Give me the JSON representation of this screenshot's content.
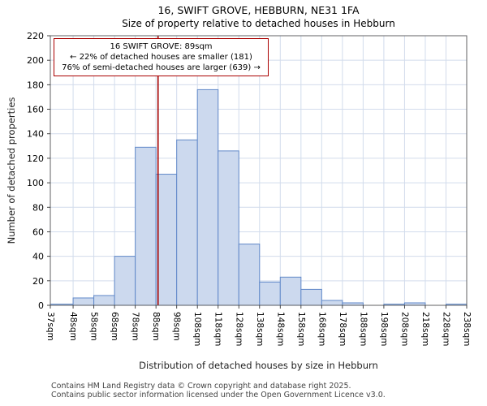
{
  "page": {
    "footer_line1": "Contains HM Land Registry data © Crown copyright and database right 2025.",
    "footer_line2": "Contains public sector information licensed under the Open Government Licence v3.0."
  },
  "annotation": {
    "line1": "16 SWIFT GROVE: 89sqm",
    "line2": "← 22% of detached houses are smaller (181)",
    "line3": "76% of semi-detached houses are larger (639) →"
  },
  "chart_data": {
    "type": "bar",
    "title": "16, SWIFT GROVE, HEBBURN, NE31 1FA",
    "subtitle": "Size of property relative to detached houses in Hebburn",
    "xlabel": "Distribution of detached houses by size in Hebburn",
    "ylabel": "Number of detached properties",
    "bin_unit": "sqm",
    "bin_edges": [
      37,
      48,
      58,
      68,
      78,
      88,
      98,
      108,
      118,
      128,
      138,
      148,
      158,
      168,
      178,
      188,
      198,
      208,
      218,
      228,
      238
    ],
    "values": [
      1,
      6,
      8,
      40,
      129,
      107,
      135,
      176,
      126,
      50,
      19,
      23,
      13,
      4,
      2,
      0,
      1,
      2,
      0,
      1
    ],
    "ylim": [
      0,
      220
    ],
    "ytick_step": 20,
    "grid": true,
    "marker_value": 89,
    "colors": {
      "bar_fill": "#ccd9ee",
      "bar_edge": "#6189c9",
      "grid": "#d2dcec",
      "marker": "#a40000",
      "spine": "#555555"
    }
  }
}
